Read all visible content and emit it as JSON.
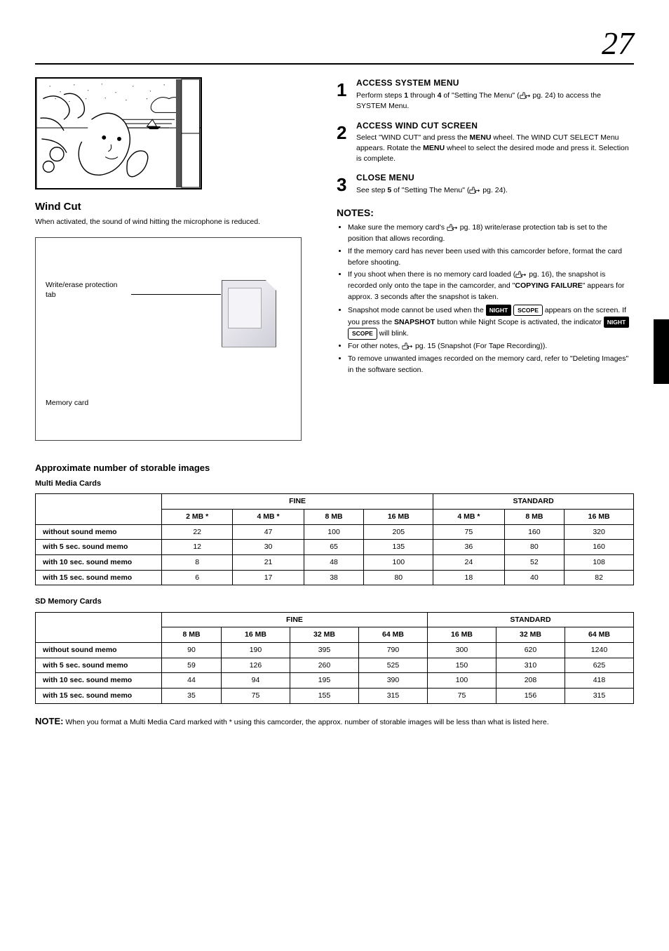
{
  "page_number": "27",
  "feature": {
    "title": "Wind Cut",
    "description": "When activated, the sound of wind hitting the microphone is reduced."
  },
  "diagram": {
    "label_write_protect": "Write/erase protection tab",
    "label_memory_card": "Memory card"
  },
  "steps": [
    {
      "num": "1",
      "heading": "ACCESS SYSTEM MENU",
      "text_pre": "Perform steps ",
      "text_bold": "1",
      "text_mid": " through ",
      "text_bold2": "4",
      "text_post": " of \"Setting The Menu\" (",
      "hand": true,
      "ref": " pg. 24) to access the SYSTEM Menu."
    },
    {
      "num": "2",
      "heading": "ACCESS WIND CUT SCREEN",
      "text": "Select \"WIND CUT\" and press the ",
      "bold1": "MENU",
      "mid": " wheel. The WIND CUT SELECT Menu appears. Rotate the ",
      "bold2": "MENU",
      "post": " wheel to select the desired mode and press it. Selection is complete."
    },
    {
      "num": "3",
      "heading": "CLOSE MENU",
      "text": "See step ",
      "bold1": "5",
      "mid": " of \"Setting The Menu\" (",
      "hand": true,
      "ref": " pg. 24)."
    }
  ],
  "notes_heading": "NOTES:",
  "notes": [
    {
      "text_pre": "Make sure the memory card's ",
      "hand": true,
      "text_post": " pg. 18) write/erase protection tab is set to the position that allows recording."
    },
    {
      "text": "If the memory card has never been used with this camcorder before, format the card before shooting."
    },
    {
      "text_pre": "If you shoot when there is no memory card loaded (",
      "hand": true,
      "text_mid": " pg. 16), the snapshot is recorded only onto the tape in the camcorder, and \"",
      "badge": "COPYING FAILURE",
      "text_post": "\" appears for approx. 3 seconds after the snapshot is taken."
    },
    {
      "text_pre": "Snapshot mode cannot be used when the ",
      "btn_dark1": "NIGHT",
      "text_mid1": " ",
      "btn_light1": "SCOPE",
      "text_mid2": " appears on the screen. If you press the ",
      "bold1": "SNAPSHOT",
      "text_mid3": " button while Night Scope is activated, the indicator ",
      "btn_dark2": "NIGHT",
      "text_mid4": " ",
      "btn_light2": "SCOPE",
      "text_post": " will blink."
    },
    {
      "text_pre": "For other notes, ",
      "hand": true,
      "text_post": " pg. 15 (Snapshot (For Tape Recording))."
    },
    {
      "text": "To remove unwanted images recorded on the memory card, refer to \"Deleting Images\" in the software section."
    }
  ],
  "tables_title": "Approximate number of storable images",
  "table_a": {
    "subtitle": "Multi Media Cards",
    "col_group_fine": "FINE",
    "col_group_standard": "STANDARD",
    "cols": [
      "2 MB *",
      "4 MB *",
      "8 MB",
      "16 MB",
      "4 MB *",
      "8 MB",
      "16 MB"
    ],
    "rows": [
      {
        "label": "without sound memo",
        "fine": [
          "22",
          "47",
          "100",
          "205"
        ],
        "std": [
          "75",
          "160",
          "320"
        ]
      },
      {
        "label": "with 5 sec. sound memo",
        "fine": [
          "12",
          "30",
          "65",
          "135"
        ],
        "std": [
          "36",
          "80",
          "160"
        ]
      },
      {
        "label": "with 10 sec. sound memo",
        "fine": [
          "8",
          "21",
          "48",
          "100"
        ],
        "std": [
          "24",
          "52",
          "108"
        ]
      },
      {
        "label": "with 15 sec. sound memo",
        "fine": [
          "6",
          "17",
          "38",
          "80"
        ],
        "std": [
          "18",
          "40",
          "82"
        ]
      }
    ]
  },
  "table_b": {
    "subtitle": "SD Memory Cards",
    "col_group_fine": "FINE",
    "col_group_standard": "STANDARD",
    "cols": [
      "8 MB",
      "16 MB",
      "32 MB",
      "64 MB",
      "16 MB",
      "32 MB",
      "64 MB"
    ],
    "rows": [
      {
        "label": "without sound memo",
        "fine": [
          "90",
          "190",
          "395",
          "790"
        ],
        "std": [
          "300",
          "620",
          "1240"
        ]
      },
      {
        "label": "with 5 sec. sound memo",
        "fine": [
          "59",
          "126",
          "260",
          "525"
        ],
        "std": [
          "150",
          "310",
          "625"
        ]
      },
      {
        "label": "with 10 sec. sound memo",
        "fine": [
          "44",
          "94",
          "195",
          "390"
        ],
        "std": [
          "100",
          "208",
          "418"
        ]
      },
      {
        "label": "with 15 sec. sound memo",
        "fine": [
          "35",
          "75",
          "155",
          "315"
        ],
        "std": [
          "75",
          "156",
          "315"
        ]
      }
    ]
  },
  "footnote": {
    "label": "NOTE:",
    "text": "When you format a Multi Media Card marked with * using this camcorder, the approx. number of storable images will be less than what is listed here."
  },
  "colors": {
    "text": "#000000",
    "bg": "#ffffff",
    "btn_dark_bg": "#000000",
    "btn_dark_fg": "#ffffff"
  }
}
